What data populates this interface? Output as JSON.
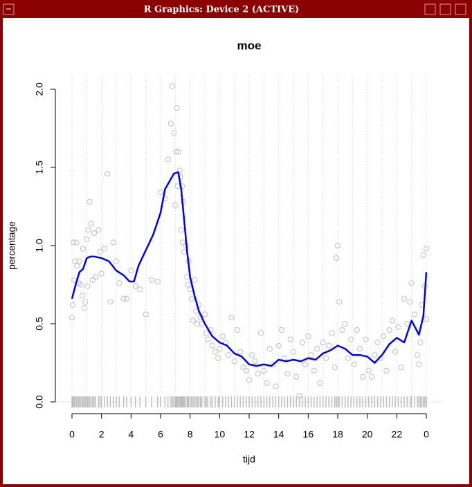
{
  "window": {
    "title": "R Graphics: Device 2 (ACTIVE)"
  },
  "chart_data": {
    "type": "scatter",
    "title": "moe",
    "xlabel": "tijd",
    "ylabel": "percentage",
    "xlim": [
      0,
      24
    ],
    "ylim": [
      0,
      2
    ],
    "xticks": [
      0,
      2,
      4,
      6,
      8,
      10,
      12,
      14,
      16,
      18,
      20,
      22,
      {
        "value": 24,
        "label": "0"
      }
    ],
    "yticks": [
      {
        "value": 0,
        "label": "0.0"
      },
      0.5,
      {
        "value": 1,
        "label": "1.0"
      },
      1.5,
      {
        "value": 2,
        "label": "2.0"
      }
    ],
    "grid": true,
    "rug": true,
    "series": [
      {
        "type": "scatter",
        "color": "#bebebe",
        "x": [
          0,
          0.05,
          0.1,
          0.15,
          0.2,
          0.3,
          0.35,
          0.45,
          0.5,
          0.6,
          0.7,
          0.75,
          0.85,
          0.9,
          1.0,
          1.05,
          1.1,
          1.2,
          1.3,
          1.4,
          1.5,
          1.6,
          1.8,
          1.9,
          2.0,
          2.2,
          2.4,
          2.6,
          2.8,
          3.0,
          3.2,
          3.5,
          3.7,
          4.0,
          4.3,
          4.6,
          5.0,
          5.4,
          5.8,
          6.0,
          6.3,
          6.5,
          6.7,
          6.8,
          6.9,
          7.0,
          7.05,
          7.1,
          7.15,
          7.2,
          7.3,
          7.35,
          7.4,
          7.45,
          7.5,
          7.55,
          7.6,
          7.7,
          7.8,
          7.85,
          7.9,
          8.0,
          8.1,
          8.2,
          8.3,
          8.4,
          8.5,
          8.6,
          8.7,
          8.8,
          9.0,
          9.1,
          9.2,
          9.4,
          9.5,
          9.7,
          9.9,
          10.0,
          10.2,
          10.4,
          10.6,
          10.8,
          11.0,
          11.2,
          11.4,
          11.6,
          11.8,
          12.0,
          12.2,
          12.4,
          12.6,
          12.8,
          13.0,
          13.2,
          13.4,
          13.6,
          13.8,
          14.0,
          14.2,
          14.4,
          14.6,
          14.8,
          15.0,
          15.2,
          15.4,
          15.6,
          15.8,
          16.0,
          16.2,
          16.4,
          16.6,
          16.8,
          17.0,
          17.2,
          17.4,
          17.6,
          17.8,
          17.9,
          18.0,
          18.1,
          18.3,
          18.5,
          18.7,
          18.9,
          19.1,
          19.3,
          19.5,
          19.7,
          19.9,
          20.1,
          20.3,
          20.5,
          20.7,
          20.9,
          21.1,
          21.3,
          21.5,
          21.7,
          21.9,
          22.1,
          22.3,
          22.5,
          22.7,
          22.9,
          23.0,
          23.2,
          23.4,
          23.5,
          23.6,
          23.7,
          23.8,
          23.9,
          24.0,
          24.0
        ],
        "values": [
          0.54,
          0.62,
          1.02,
          0.78,
          0.9,
          1.02,
          0.87,
          0.76,
          0.9,
          0.75,
          0.68,
          0.98,
          0.6,
          0.64,
          1.04,
          0.74,
          1.1,
          1.28,
          1.14,
          0.78,
          1.08,
          0.8,
          1.1,
          0.96,
          0.82,
          0.98,
          1.46,
          0.64,
          1.02,
          0.9,
          0.76,
          0.66,
          0.66,
          0.84,
          0.74,
          0.72,
          0.56,
          0.78,
          0.77,
          1.34,
          1.3,
          1.55,
          1.78,
          2.02,
          1.72,
          1.26,
          1.6,
          1.88,
          1.38,
          1.6,
          1.48,
          1.44,
          1.1,
          1.38,
          1.02,
          1.28,
          0.96,
          1.0,
          0.8,
          0.75,
          0.9,
          0.72,
          0.66,
          0.52,
          0.78,
          0.58,
          0.5,
          0.62,
          0.54,
          0.5,
          0.56,
          0.44,
          0.4,
          0.46,
          0.36,
          0.32,
          0.28,
          0.34,
          0.42,
          0.38,
          0.3,
          0.54,
          0.26,
          0.46,
          0.32,
          0.22,
          0.2,
          0.14,
          0.3,
          0.26,
          0.18,
          0.44,
          0.2,
          0.12,
          0.34,
          0.24,
          0.1,
          0.36,
          0.46,
          0.28,
          0.18,
          0.4,
          0.32,
          0.16,
          0.04,
          0.38,
          0.24,
          0.42,
          0.3,
          0.2,
          0.34,
          0.12,
          0.38,
          0.28,
          0.36,
          0.44,
          0.22,
          0.92,
          1.0,
          0.64,
          0.46,
          0.5,
          0.28,
          0.4,
          0.24,
          0.46,
          0.34,
          0.16,
          0.4,
          0.2,
          0.16,
          0.3,
          0.38,
          0.28,
          0.42,
          0.2,
          0.46,
          0.52,
          0.32,
          0.48,
          0.22,
          0.66,
          0.5,
          0.64,
          0.76,
          0.56,
          0.3,
          0.24,
          0.38,
          0.62,
          0.94,
          0.74,
          0.98,
          0.53
        ]
      },
      {
        "type": "line",
        "color": "#0000ee",
        "x": [
          0,
          0.25,
          0.5,
          0.75,
          1.0,
          1.25,
          1.5,
          2.0,
          2.5,
          3.0,
          3.5,
          3.9,
          4.2,
          4.5,
          5.0,
          5.5,
          6.0,
          6.3,
          6.6,
          6.9,
          7.2,
          7.4,
          7.6,
          7.8,
          8.0,
          8.3,
          8.6,
          9.0,
          9.5,
          10.0,
          10.5,
          11.0,
          11.5,
          12.0,
          12.5,
          13.0,
          13.5,
          14.0,
          14.5,
          15.0,
          15.5,
          16.0,
          16.5,
          17.0,
          17.5,
          18.0,
          18.5,
          19.0,
          19.5,
          20.0,
          20.5,
          21.0,
          21.5,
          22.0,
          22.5,
          23.0,
          23.5,
          23.8,
          24.0
        ],
        "values": [
          0.66,
          0.75,
          0.83,
          0.85,
          0.92,
          0.93,
          0.93,
          0.92,
          0.9,
          0.84,
          0.81,
          0.77,
          0.77,
          0.87,
          0.97,
          1.07,
          1.21,
          1.36,
          1.41,
          1.46,
          1.47,
          1.36,
          1.16,
          0.96,
          0.8,
          0.68,
          0.58,
          0.5,
          0.42,
          0.38,
          0.36,
          0.31,
          0.29,
          0.24,
          0.23,
          0.24,
          0.23,
          0.27,
          0.26,
          0.27,
          0.26,
          0.28,
          0.27,
          0.31,
          0.33,
          0.36,
          0.34,
          0.3,
          0.3,
          0.29,
          0.25,
          0.3,
          0.37,
          0.41,
          0.38,
          0.52,
          0.43,
          0.55,
          0.83
        ]
      }
    ]
  }
}
